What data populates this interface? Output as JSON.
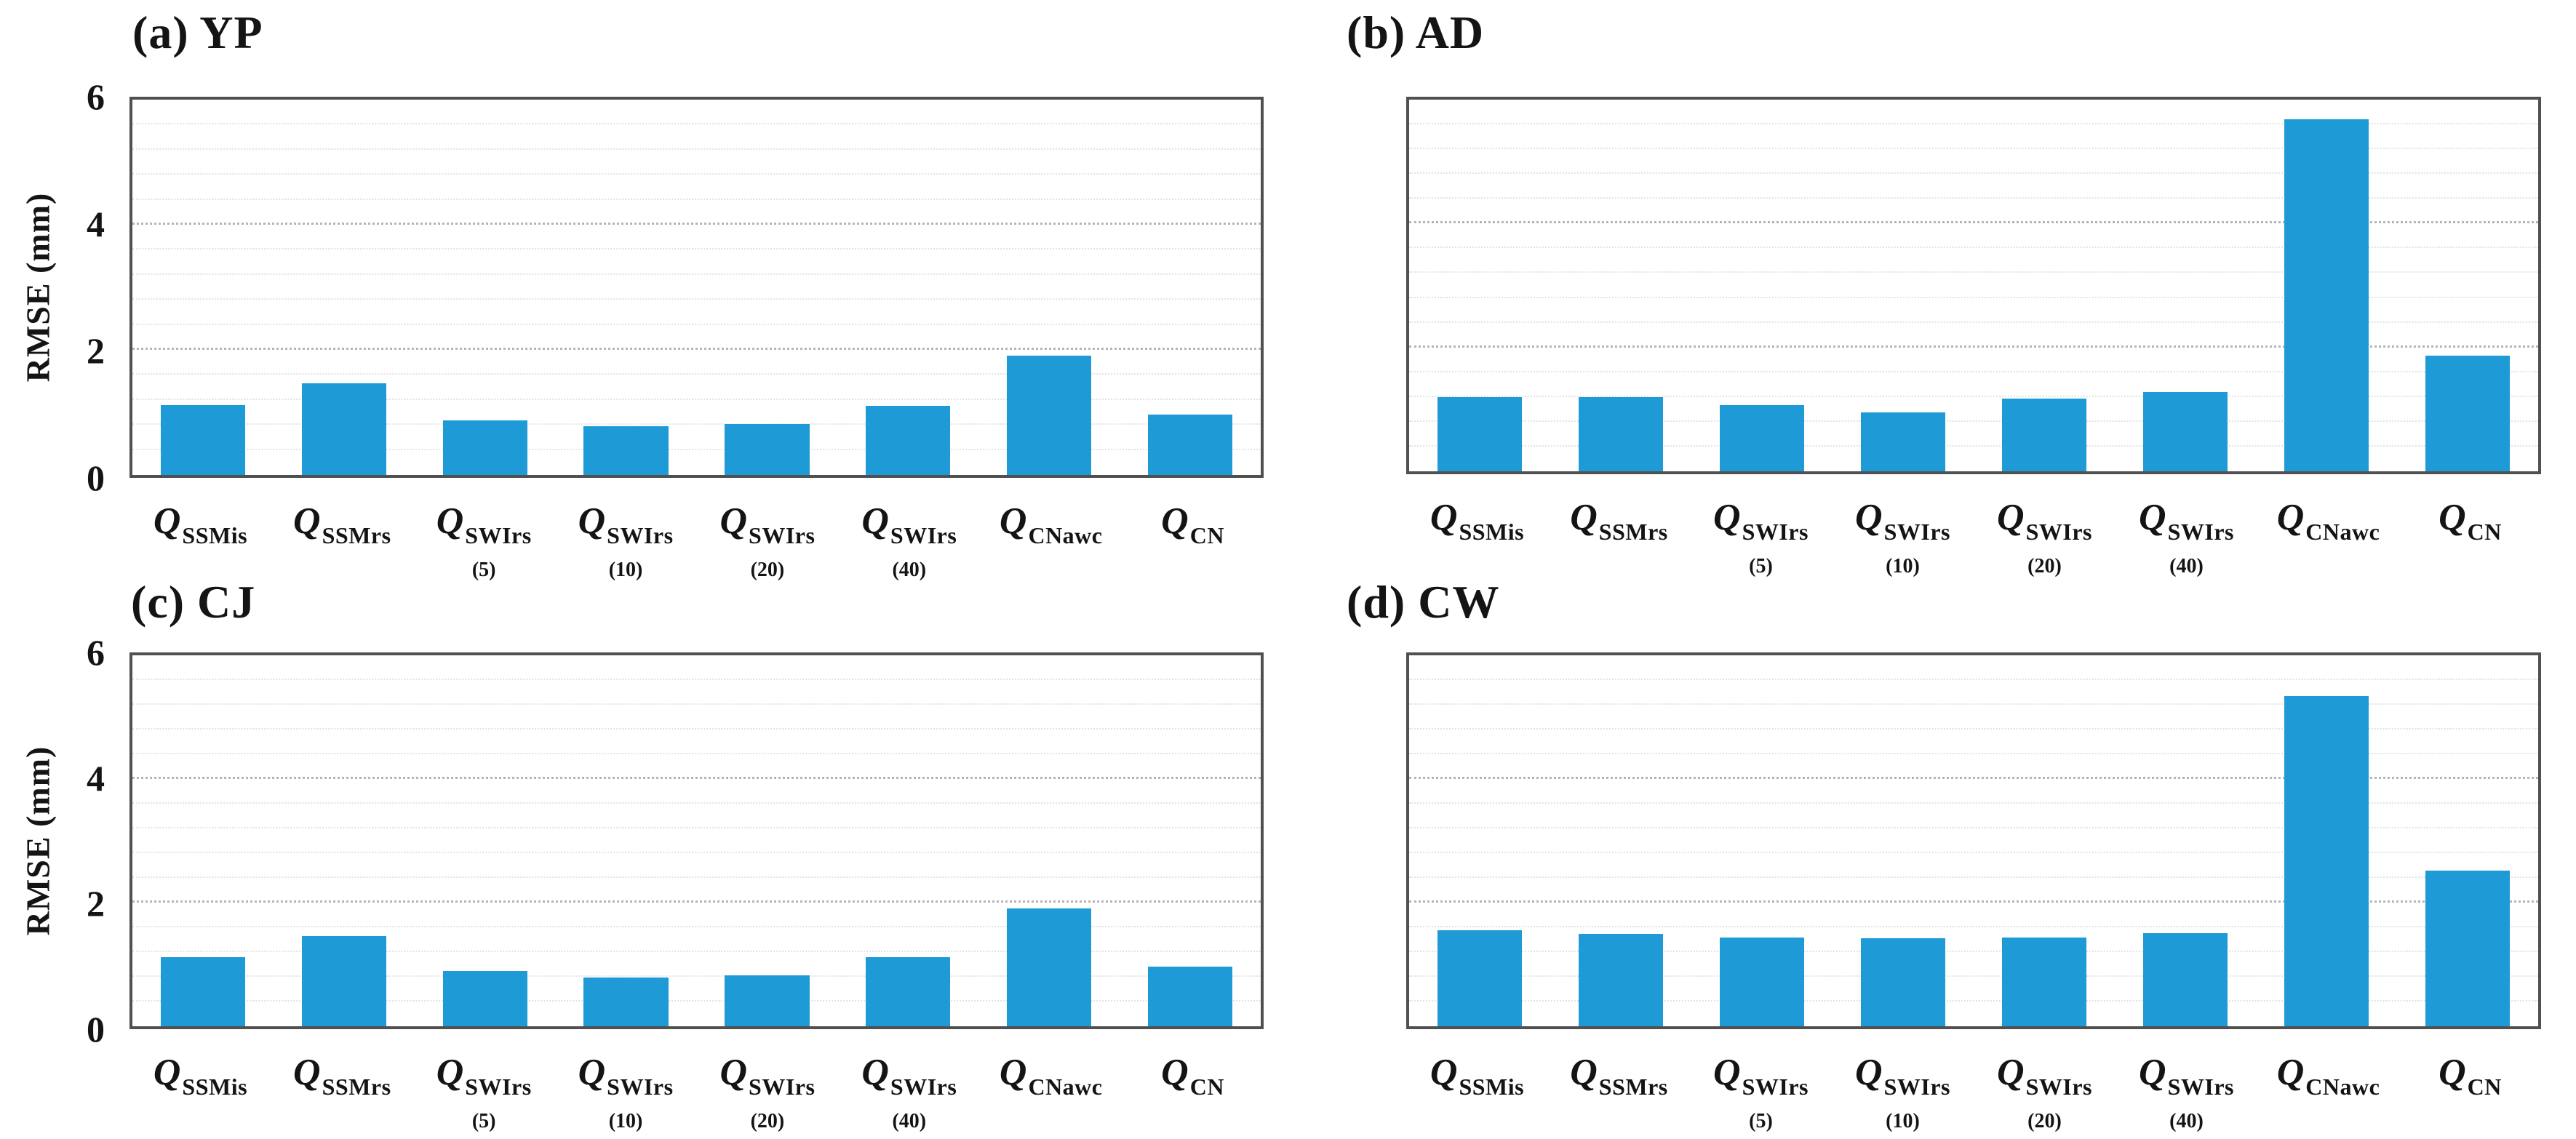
{
  "figure": {
    "background": "#ffffff",
    "bar_color": "#1E9BD7",
    "axis_border_color": "#505050",
    "minor_grid_color": "#e3e3e3",
    "major_grid_color": "#b5b5b5",
    "ylabel": "RMSE (mm)",
    "category_parts": [
      {
        "base": "Q",
        "sub": "SSMis",
        "note": ""
      },
      {
        "base": "Q",
        "sub": "SSMrs",
        "note": ""
      },
      {
        "base": "Q",
        "sub": "SWIrs",
        "note": "(5)"
      },
      {
        "base": "Q",
        "sub": "SWIrs",
        "note": "(10)"
      },
      {
        "base": "Q",
        "sub": "SWIrs",
        "note": "(20)"
      },
      {
        "base": "Q",
        "sub": "SWIrs",
        "note": "(40)"
      },
      {
        "base": "Q",
        "sub": "CNawc",
        "note": ""
      },
      {
        "base": "Q",
        "sub": "CN",
        "note": ""
      }
    ]
  },
  "chart_data": [
    {
      "type": "bar",
      "panel": "a",
      "title": "(a) YP",
      "ylabel": "RMSE (mm)",
      "ylim": [
        0,
        6
      ],
      "yticks": [
        0,
        2,
        4,
        6
      ],
      "grid": {
        "minor_step": 0.4,
        "major_lines": [
          2,
          4
        ]
      },
      "legend": false,
      "show_y_axis": true,
      "categories": [
        "Q_SSMis",
        "Q_SSMrs",
        "Q_SWIrs (5)",
        "Q_SWIrs (10)",
        "Q_SWIrs (20)",
        "Q_SWIrs (40)",
        "Q_CNawc",
        "Q_CN"
      ],
      "values": [
        1.12,
        1.47,
        0.87,
        0.78,
        0.81,
        1.1,
        1.91,
        0.96
      ]
    },
    {
      "type": "bar",
      "panel": "b",
      "title": "(b) AD",
      "ylabel": "RMSE (mm)",
      "ylim": [
        0,
        6
      ],
      "yticks": [
        0,
        2,
        4,
        6
      ],
      "grid": {
        "minor_step": 0.4,
        "major_lines": [
          2,
          4
        ]
      },
      "legend": false,
      "show_y_axis": false,
      "categories": [
        "Q_SSMis",
        "Q_SSMrs",
        "Q_SWIrs (5)",
        "Q_SWIrs (10)",
        "Q_SWIrs (20)",
        "Q_SWIrs (40)",
        "Q_CNawc",
        "Q_CN"
      ],
      "values": [
        1.2,
        1.2,
        1.07,
        0.95,
        1.17,
        1.28,
        5.68,
        1.87
      ]
    },
    {
      "type": "bar",
      "panel": "c",
      "title": "(c) CJ",
      "ylabel": "RMSE (mm)",
      "ylim": [
        0,
        6
      ],
      "yticks": [
        0,
        2,
        4,
        6
      ],
      "grid": {
        "minor_step": 0.4,
        "major_lines": [
          2,
          4
        ]
      },
      "legend": false,
      "show_y_axis": true,
      "categories": [
        "Q_SSMis",
        "Q_SSMrs",
        "Q_SWIrs (5)",
        "Q_SWIrs (10)",
        "Q_SWIrs (20)",
        "Q_SWIrs (40)",
        "Q_CNawc",
        "Q_CN"
      ],
      "values": [
        1.12,
        1.46,
        0.89,
        0.79,
        0.82,
        1.12,
        1.91,
        0.97
      ]
    },
    {
      "type": "bar",
      "panel": "d",
      "title": "(d) CW",
      "ylabel": "RMSE (mm)",
      "ylim": [
        0,
        6
      ],
      "yticks": [
        0,
        2,
        4,
        6
      ],
      "grid": {
        "minor_step": 0.4,
        "major_lines": [
          2,
          4
        ]
      },
      "legend": false,
      "show_y_axis": false,
      "categories": [
        "Q_SSMis",
        "Q_SSMrs",
        "Q_SWIrs (5)",
        "Q_SWIrs (10)",
        "Q_SWIrs (20)",
        "Q_SWIrs (40)",
        "Q_CNawc",
        "Q_CN"
      ],
      "values": [
        1.55,
        1.49,
        1.44,
        1.42,
        1.44,
        1.51,
        5.34,
        2.52
      ]
    }
  ]
}
